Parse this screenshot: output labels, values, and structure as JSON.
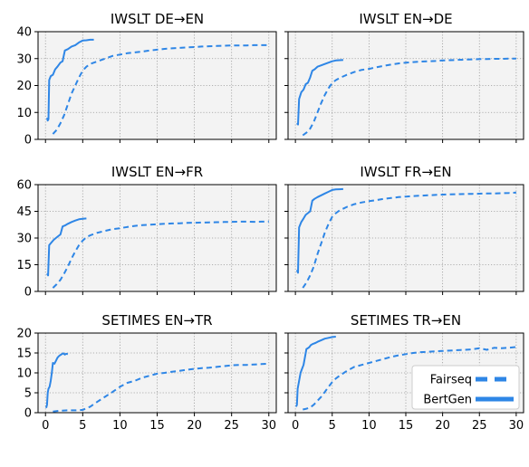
{
  "colors": {
    "line": "#2e86e6",
    "plot_background": "#f3f3f3",
    "grid": "#9a9a9a",
    "frame": "#000000"
  },
  "legend": {
    "placement": "lower-right of last panel",
    "entries": [
      {
        "label": "Fairseq",
        "style": "dashed"
      },
      {
        "label": "BertGen",
        "style": "solid"
      }
    ]
  },
  "chart_data": [
    {
      "type": "line",
      "title": "IWSLT DE→EN",
      "xlim": [
        -1,
        31
      ],
      "ylim": [
        0,
        40
      ],
      "xticks": [
        0,
        5,
        10,
        15,
        20,
        25,
        30
      ],
      "yticks": [
        0,
        10,
        20,
        30,
        40
      ],
      "series": [
        {
          "name": "Fairseq",
          "style": "dashed",
          "x": [
            1,
            1.5,
            2,
            2.5,
            3,
            3.5,
            4,
            4.5,
            5,
            5.5,
            6,
            7,
            8,
            9,
            10,
            11,
            12,
            13,
            14,
            15,
            16,
            17,
            18,
            19,
            20,
            21,
            22,
            23,
            24,
            25,
            26,
            27,
            28,
            29,
            30
          ],
          "y": [
            2,
            3.5,
            6,
            9,
            13,
            17,
            20,
            23,
            25.5,
            27,
            28,
            29,
            30,
            31,
            31.5,
            32,
            32.3,
            32.6,
            33,
            33.3,
            33.6,
            33.8,
            34,
            34.2,
            34.3,
            34.5,
            34.6,
            34.7,
            34.8,
            34.9,
            34.9,
            34.9,
            35,
            35,
            35
          ]
        },
        {
          "name": "BertGen",
          "style": "solid",
          "x": [
            0.2,
            0.3,
            0.4,
            0.5,
            0.7,
            1,
            1.3,
            1.6,
            2,
            2.3,
            2.6,
            3,
            3.5,
            4,
            4.5,
            5,
            5.5,
            6,
            6.5
          ],
          "y": [
            8,
            7,
            7.5,
            22,
            23.5,
            24,
            26,
            27,
            28.5,
            29,
            33,
            33.5,
            34.5,
            35,
            36,
            36.7,
            36.8,
            37,
            37
          ]
        }
      ]
    },
    {
      "type": "line",
      "title": "IWSLT EN→DE",
      "xlim": [
        -1,
        31
      ],
      "ylim": [
        0,
        40
      ],
      "xticks": [
        0,
        5,
        10,
        15,
        20,
        25,
        30
      ],
      "yticks": [
        0,
        10,
        20,
        30,
        40
      ],
      "series": [
        {
          "name": "Fairseq",
          "style": "dashed",
          "x": [
            1,
            1.5,
            2,
            2.5,
            3,
            3.5,
            4,
            4.5,
            5,
            5.5,
            6,
            7,
            8,
            9,
            10,
            11,
            12,
            13,
            14,
            15,
            16,
            17,
            18,
            19,
            20,
            21,
            22,
            23,
            24,
            25,
            26,
            27,
            28,
            29,
            30
          ],
          "y": [
            1.5,
            2.5,
            4,
            6.5,
            10,
            13.5,
            16.5,
            19,
            21,
            22,
            22.8,
            24,
            25,
            25.8,
            26.2,
            26.8,
            27.3,
            27.8,
            28.2,
            28.5,
            28.7,
            28.9,
            29,
            29.1,
            29.3,
            29.4,
            29.5,
            29.6,
            29.7,
            29.8,
            29.8,
            29.9,
            29.9,
            30,
            30
          ]
        },
        {
          "name": "BertGen",
          "style": "solid",
          "x": [
            0.2,
            0.35,
            0.5,
            0.8,
            1.1,
            1.4,
            1.7,
            2,
            2.3,
            2.6,
            3,
            3.5,
            4,
            4.5,
            5,
            5.5,
            6,
            6.5
          ],
          "y": [
            6,
            5.5,
            15,
            17.5,
            18.5,
            20.5,
            21,
            23,
            25.5,
            26,
            27,
            27.5,
            28,
            28.5,
            29,
            29.3,
            29.4,
            29.5
          ]
        }
      ]
    },
    {
      "type": "line",
      "title": "IWSLT EN→FR",
      "xlim": [
        -1,
        31
      ],
      "ylim": [
        0,
        60
      ],
      "xticks": [
        0,
        5,
        10,
        15,
        20,
        25,
        30
      ],
      "yticks": [
        0,
        15,
        30,
        45,
        60
      ],
      "series": [
        {
          "name": "Fairseq",
          "style": "dashed",
          "x": [
            1,
            1.5,
            2,
            2.5,
            3,
            3.5,
            4,
            4.5,
            5,
            5.5,
            6,
            7,
            8,
            9,
            10,
            11,
            12,
            13,
            14,
            15,
            16,
            17,
            18,
            19,
            20,
            21,
            22,
            23,
            24,
            25,
            26,
            27,
            28,
            29,
            30
          ],
          "y": [
            2,
            4,
            6.5,
            10,
            14,
            18.5,
            22.5,
            26,
            28.5,
            30.5,
            31.5,
            33,
            34,
            35,
            35.5,
            36.2,
            36.8,
            37.2,
            37.5,
            37.8,
            38,
            38.2,
            38.3,
            38.5,
            38.6,
            38.7,
            38.8,
            38.9,
            39,
            39.1,
            39.2,
            39.2,
            39.1,
            39.2,
            39.3
          ]
        },
        {
          "name": "BertGen",
          "style": "solid",
          "x": [
            0.2,
            0.35,
            0.5,
            0.8,
            1.1,
            1.4,
            1.7,
            2,
            2.3,
            2.6,
            3,
            3.5,
            4,
            4.5,
            5,
            5.5
          ],
          "y": [
            10,
            9,
            26,
            27.5,
            29,
            30,
            31,
            32,
            36.5,
            37,
            38,
            39,
            39.8,
            40.5,
            40.8,
            41
          ]
        }
      ]
    },
    {
      "type": "line",
      "title": "IWSLT FR→EN",
      "xlim": [
        -1,
        31
      ],
      "ylim": [
        0,
        60
      ],
      "xticks": [
        0,
        5,
        10,
        15,
        20,
        25,
        30
      ],
      "yticks": [
        0,
        15,
        30,
        45,
        60
      ],
      "series": [
        {
          "name": "Fairseq",
          "style": "dashed",
          "x": [
            1,
            1.5,
            2,
            2.5,
            3,
            3.5,
            4,
            4.5,
            5,
            5.5,
            6,
            7,
            8,
            9,
            10,
            11,
            12,
            13,
            14,
            15,
            16,
            17,
            18,
            19,
            20,
            21,
            22,
            23,
            24,
            25,
            26,
            27,
            28,
            29,
            30
          ],
          "y": [
            2,
            5,
            9,
            14,
            21,
            27,
            33,
            38,
            42,
            44,
            45.5,
            47.5,
            49,
            50,
            50.7,
            51.3,
            52,
            52.5,
            53,
            53.3,
            53.6,
            53.8,
            54,
            54.2,
            54.4,
            54.5,
            54.6,
            54.7,
            54.8,
            54.9,
            55,
            55,
            55.2,
            55.3,
            55.5
          ]
        },
        {
          "name": "BertGen",
          "style": "solid",
          "x": [
            0.2,
            0.35,
            0.5,
            0.8,
            1.1,
            1.4,
            1.7,
            2,
            2.3,
            2.6,
            3,
            3.5,
            4,
            4.5,
            5,
            5.5,
            6,
            6.5
          ],
          "y": [
            12,
            10.5,
            36,
            39,
            41,
            43,
            44,
            45,
            51,
            52,
            53,
            54,
            55,
            56,
            57,
            57.3,
            57.4,
            57.5
          ]
        }
      ]
    },
    {
      "type": "line",
      "title": "SETIMES EN→TR",
      "xlim": [
        -1,
        31
      ],
      "ylim": [
        0,
        20
      ],
      "xticks": [
        0,
        5,
        10,
        15,
        20,
        25,
        30
      ],
      "xticklabels": [
        "0",
        "5",
        "10",
        "15",
        "20",
        "25",
        "30"
      ],
      "yticks": [
        0,
        5,
        10,
        15,
        20
      ],
      "series": [
        {
          "name": "Fairseq",
          "style": "dashed",
          "x": [
            1,
            2,
            3,
            4,
            5,
            6,
            7,
            8,
            9,
            10,
            11,
            12,
            13,
            14,
            15,
            16,
            17,
            18,
            19,
            20,
            21,
            22,
            23,
            24,
            25,
            26,
            27,
            28,
            29,
            30
          ],
          "y": [
            0.3,
            0.5,
            0.6,
            0.6,
            0.7,
            1.5,
            2.8,
            4,
            5.2,
            6.5,
            7.5,
            8,
            8.8,
            9.3,
            9.8,
            10,
            10.3,
            10.5,
            10.8,
            11,
            11.2,
            11.3,
            11.5,
            11.7,
            11.9,
            12,
            12,
            12.1,
            12.2,
            12.3
          ]
        },
        {
          "name": "BertGen",
          "style": "solid",
          "x": [
            0.1,
            0.2,
            0.3,
            0.4,
            0.55,
            0.7,
            0.85,
            1,
            1.2,
            1.4,
            1.6,
            1.8,
            2,
            2.2,
            2.4,
            2.6,
            2.8,
            3
          ],
          "y": [
            1.2,
            2,
            5,
            6,
            6.5,
            8,
            10,
            12.5,
            12.3,
            13,
            13.8,
            14.2,
            14.5,
            14.7,
            14.9,
            14.6,
            14.8,
            14.7
          ]
        }
      ]
    },
    {
      "type": "line",
      "title": "SETIMES TR→EN",
      "xlim": [
        -1,
        31
      ],
      "ylim": [
        0,
        20
      ],
      "xticks": [
        0,
        5,
        10,
        15,
        20,
        25,
        30
      ],
      "xticklabels": [
        "0",
        "5",
        "10",
        "15",
        "20",
        "25",
        "30"
      ],
      "yticks": [
        0,
        5,
        10,
        15,
        20
      ],
      "series": [
        {
          "name": "Fairseq",
          "style": "dashed",
          "x": [
            1,
            1.5,
            2,
            2.5,
            3,
            3.5,
            4,
            4.5,
            5,
            5.5,
            6,
            7,
            8,
            9,
            10,
            11,
            12,
            13,
            14,
            15,
            16,
            17,
            18,
            19,
            20,
            21,
            22,
            23,
            24,
            25,
            26,
            27,
            28,
            29,
            30
          ],
          "y": [
            0.8,
            1,
            1.3,
            2,
            3,
            4,
            5.2,
            6.5,
            7.7,
            8.6,
            9.3,
            10.5,
            11.5,
            12,
            12.5,
            13,
            13.5,
            14,
            14.4,
            14.7,
            15,
            15.2,
            15.3,
            15.4,
            15.5,
            15.6,
            15.7,
            15.8,
            15.9,
            16.2,
            15.8,
            16.3,
            16.2,
            16.3,
            16.5
          ]
        },
        {
          "name": "BertGen",
          "style": "solid",
          "x": [
            0.1,
            0.2,
            0.3,
            0.5,
            0.7,
            0.9,
            1.1,
            1.3,
            1.5,
            1.7,
            1.9,
            2.1,
            2.4,
            2.7,
            3,
            3.5,
            4,
            4.5,
            5,
            5.5
          ],
          "y": [
            1.5,
            2,
            6,
            8,
            10,
            11,
            12,
            14,
            16,
            16.2,
            16.5,
            17,
            17.3,
            17.5,
            17.8,
            18.2,
            18.6,
            18.8,
            19,
            19.1
          ]
        }
      ]
    }
  ]
}
